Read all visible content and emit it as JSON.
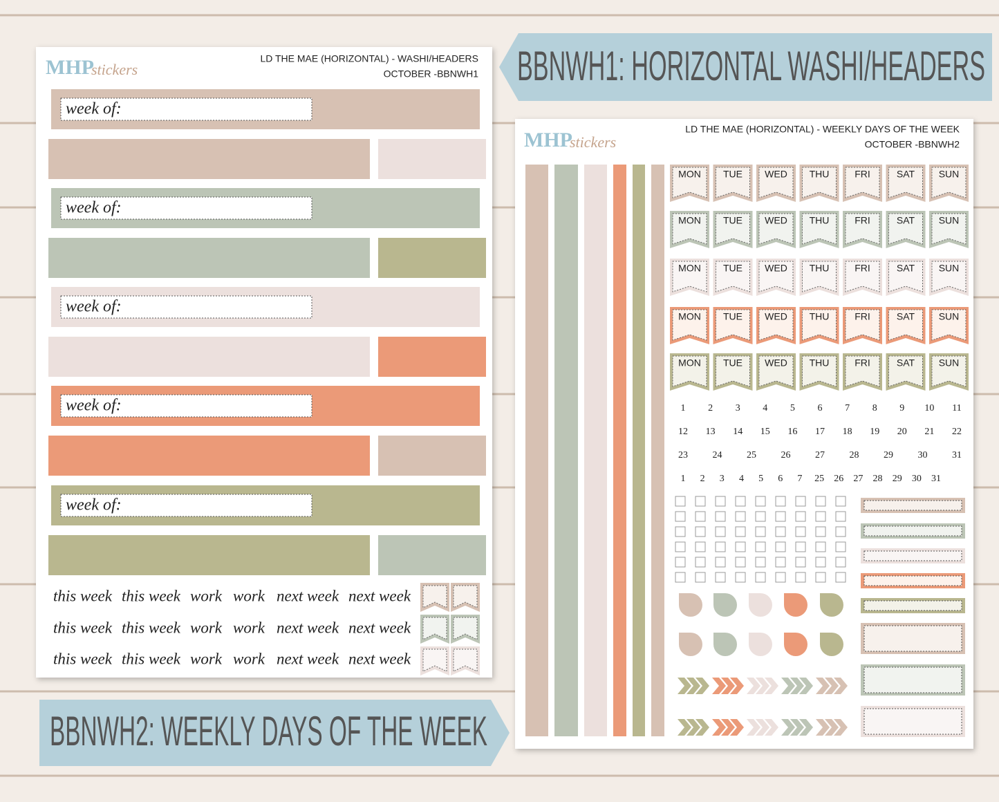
{
  "banners": {
    "top": "BBNWH1: HORIZONTAL WASHI/HEADERS",
    "bottom": "BBNWH2: WEEKLY DAYS OF THE WEEK"
  },
  "sheet1": {
    "logo": {
      "brand": "MHP",
      "suffix": "stickers"
    },
    "header": [
      "LD THE MAE (HORIZONTAL) - WASHI/HEADERS",
      "OCTOBER -BBNWH1"
    ],
    "week_labels": [
      "week of:",
      "week of:",
      "week of:",
      "week of:",
      "week of:"
    ],
    "phrases": [
      [
        "this week",
        "this week",
        "work",
        "work",
        "next week",
        "next week"
      ],
      [
        "this week",
        "this week",
        "work",
        "work",
        "next week",
        "next week"
      ],
      [
        "this week",
        "this week",
        "work",
        "work",
        "next week",
        "next week"
      ]
    ]
  },
  "sheet2": {
    "logo": {
      "brand": "MHP",
      "suffix": "stickers"
    },
    "header": [
      "LD THE MAE (HORIZONTAL) - WEEKLY DAYS OF THE WEEK",
      "OCTOBER -BBNWH2"
    ],
    "days": [
      [
        "MON",
        "TUE",
        "WED",
        "THU",
        "FRI",
        "SAT",
        "SUN"
      ],
      [
        "MON",
        "TUE",
        "WED",
        "THU",
        "FRI",
        "SAT",
        "SUN"
      ],
      [
        "MON",
        "TUE",
        "WED",
        "THU",
        "FRI",
        "SAT",
        "SUN"
      ],
      [
        "MON",
        "TUE",
        "WED",
        "THU",
        "FRI",
        "SAT",
        "SUN"
      ],
      [
        "MON",
        "TUE",
        "WED",
        "THU",
        "FRI",
        "SAT",
        "SUN"
      ]
    ],
    "numbers": [
      [
        1,
        2,
        3,
        4,
        5,
        6,
        7,
        8,
        9,
        10,
        11
      ],
      [
        12,
        13,
        14,
        15,
        16,
        17,
        18,
        19,
        20,
        21,
        22
      ],
      [
        23,
        24,
        25,
        26,
        27,
        28,
        29,
        30,
        31
      ],
      [
        1,
        2,
        3,
        4,
        5,
        6,
        7,
        25,
        26,
        27,
        28,
        29,
        30,
        31
      ]
    ]
  }
}
